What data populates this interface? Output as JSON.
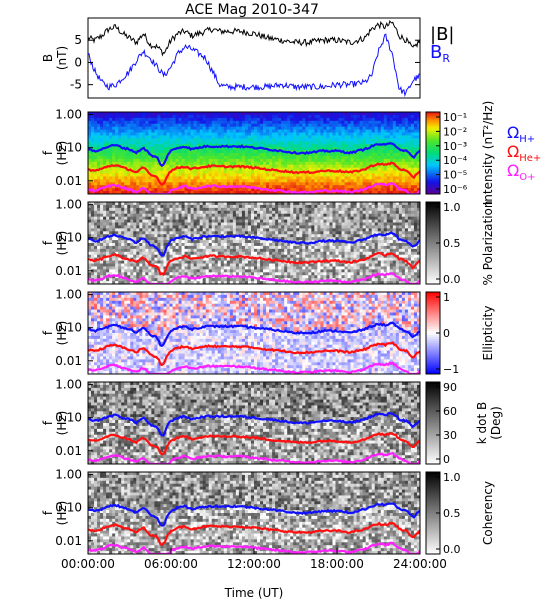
{
  "title": "ACE Mag 2010-347",
  "colors": {
    "bmag": "#000000",
    "br": "#1010ff",
    "h_plus": "#1010ff",
    "he_plus": "#ff1010",
    "o_plus": "#ff20ff"
  },
  "x_axis": {
    "label": "Time (UT)",
    "range_hours": [
      0,
      24
    ],
    "ticks": [
      "00:00:00",
      "06:00:00",
      "12:00:00",
      "18:00:00",
      "24:00:00"
    ],
    "tick_hours": [
      0,
      6,
      12,
      18,
      24
    ]
  },
  "legend": {
    "bmag": "|B|",
    "br_main": "B",
    "br_sub": "R",
    "omega": "Ω",
    "h_sub": "H+",
    "he_sub": "He+",
    "o_sub": "O+"
  },
  "freq_ticks": [
    "1.00",
    "0.10",
    "0.01"
  ],
  "chart_data": [
    {
      "type": "line",
      "ylabel_top": "B",
      "ylabel_bottom": "(nT)",
      "ylim": [
        -8,
        10
      ],
      "yticks": [
        "5",
        "0",
        "-5"
      ],
      "ytick_values": [
        5,
        0,
        -5
      ],
      "series": [
        {
          "name": "|B|",
          "x_hours": [
            0,
            0.5,
            1,
            1.5,
            2,
            2.5,
            3,
            3.5,
            4,
            4.5,
            5,
            5.5,
            6,
            6.5,
            7,
            7.5,
            8,
            8.5,
            9,
            9.5,
            10,
            11,
            12,
            13,
            14,
            15,
            16,
            17,
            18,
            19,
            20,
            20.5,
            21,
            21.5,
            22,
            22.5,
            23,
            23.5,
            24
          ],
          "values": [
            5.5,
            5.0,
            6.0,
            7.5,
            8.0,
            6.5,
            5.5,
            4.5,
            6.5,
            4.0,
            3.5,
            2.0,
            5.0,
            6.5,
            7.0,
            6.0,
            6.5,
            7.0,
            7.5,
            7.0,
            7.0,
            7.0,
            6.5,
            5.5,
            5.0,
            4.5,
            4.5,
            5.0,
            5.0,
            4.5,
            5.5,
            7.5,
            8.5,
            8.0,
            9.0,
            6.0,
            5.0,
            3.0,
            5.0
          ]
        },
        {
          "name": "B",
          "x_hours": [
            0,
            0.5,
            1,
            1.5,
            2,
            2.5,
            3,
            3.5,
            4,
            4.5,
            5,
            5.5,
            6,
            6.5,
            7,
            7.5,
            8,
            8.5,
            9,
            9.5,
            10,
            11,
            12,
            13,
            14,
            15,
            16,
            17,
            18,
            19,
            20,
            20.5,
            21,
            21.5,
            22,
            22.5,
            23,
            23.5,
            24
          ],
          "values": [
            2.0,
            -2.0,
            -4.5,
            -5.5,
            -5.0,
            -3.5,
            -2.0,
            0.5,
            2.5,
            1.0,
            -1.0,
            -3.0,
            -1.0,
            2.0,
            3.5,
            3.0,
            2.0,
            1.0,
            -2.0,
            -5.0,
            -5.5,
            -5.5,
            -5.5,
            -5.5,
            -5.0,
            -5.5,
            -5.5,
            -5.5,
            -5.0,
            -5.0,
            -4.5,
            -3.0,
            2.5,
            6.0,
            2.0,
            -6.0,
            -7.0,
            -4.0,
            -3.0
          ]
        }
      ]
    },
    {
      "type": "heatmap",
      "quantity": "Intensity",
      "ylabel_top": "f",
      "ylabel_bottom": "(Hz)",
      "colorbar_label": "Intensity (nT²/Hz)",
      "colorbar_ticks": [
        "10⁻¹",
        "10⁻²",
        "10⁻³",
        "10⁻⁴",
        "10⁻⁵",
        "10⁻⁶"
      ],
      "colorbar_tick_values": [
        0.1,
        0.01,
        0.001,
        0.0001,
        1e-05,
        1e-06
      ],
      "ylim_hz": [
        0.004,
        1.2
      ],
      "yscale": "log"
    },
    {
      "type": "heatmap",
      "quantity": "% Polarization",
      "ylabel_top": "f",
      "ylabel_bottom": "(Hz)",
      "colorbar_label": "% Polarization",
      "colorbar_ticks": [
        "1.0",
        "0.5",
        "0.0"
      ],
      "colorbar_tick_values": [
        1.0,
        0.5,
        0.0
      ],
      "ylim_hz": [
        0.004,
        1.2
      ],
      "yscale": "log"
    },
    {
      "type": "heatmap",
      "quantity": "Ellipticity",
      "ylabel_top": "f",
      "ylabel_bottom": "(Hz)",
      "colorbar_label": "Ellipticity",
      "colorbar_ticks": [
        "1",
        "0",
        "−1"
      ],
      "colorbar_tick_values": [
        1,
        0,
        -1
      ],
      "ylim_hz": [
        0.004,
        1.2
      ],
      "yscale": "log"
    },
    {
      "type": "heatmap",
      "quantity": "k dot B",
      "ylabel_top": "f",
      "ylabel_bottom": "(Hz)",
      "colorbar_label": "k dot B",
      "colorbar_label2": "(Deg)",
      "colorbar_ticks": [
        "90",
        "60",
        "30",
        "0"
      ],
      "colorbar_tick_values": [
        90,
        60,
        30,
        0
      ],
      "ylim_hz": [
        0.004,
        1.2
      ],
      "yscale": "log"
    },
    {
      "type": "heatmap",
      "quantity": "Coherency",
      "ylabel_top": "f",
      "ylabel_bottom": "(Hz)",
      "colorbar_label": "Coherency",
      "colorbar_ticks": [
        "1.0",
        "0.5",
        "0.0"
      ],
      "colorbar_tick_values": [
        1.0,
        0.5,
        0.0
      ],
      "ylim_hz": [
        0.004,
        1.2
      ],
      "yscale": "log"
    }
  ],
  "gyro_lines": {
    "x_hours": [
      0,
      0.5,
      1,
      1.5,
      2,
      2.5,
      3,
      3.5,
      4,
      4.5,
      5,
      5.25,
      5.5,
      5.75,
      6,
      6.5,
      7,
      7.5,
      8,
      8.5,
      9,
      9.5,
      10,
      11,
      12,
      13,
      14,
      15,
      16,
      17,
      18,
      19,
      20,
      20.5,
      21,
      21.5,
      22,
      22.5,
      23,
      23.5,
      24
    ],
    "H+": [
      0.09,
      0.08,
      0.09,
      0.11,
      0.12,
      0.1,
      0.09,
      0.07,
      0.1,
      0.06,
      0.05,
      0.03,
      0.03,
      0.06,
      0.08,
      0.1,
      0.11,
      0.09,
      0.1,
      0.11,
      0.11,
      0.11,
      0.11,
      0.11,
      0.1,
      0.09,
      0.08,
      0.07,
      0.07,
      0.08,
      0.08,
      0.07,
      0.09,
      0.11,
      0.13,
      0.12,
      0.14,
      0.09,
      0.08,
      0.05,
      0.08
    ],
    "He+": [
      0.022,
      0.02,
      0.023,
      0.028,
      0.03,
      0.025,
      0.022,
      0.018,
      0.025,
      0.015,
      0.013,
      0.008,
      0.008,
      0.015,
      0.02,
      0.025,
      0.027,
      0.023,
      0.025,
      0.027,
      0.028,
      0.027,
      0.027,
      0.027,
      0.025,
      0.022,
      0.02,
      0.018,
      0.018,
      0.02,
      0.02,
      0.018,
      0.022,
      0.028,
      0.033,
      0.03,
      0.035,
      0.023,
      0.02,
      0.012,
      0.02
    ],
    "O+": [
      0.0055,
      0.005,
      0.0057,
      0.007,
      0.0075,
      0.0062,
      0.0055,
      0.0045,
      0.0062,
      0.0038,
      0.0033,
      0.002,
      0.002,
      0.0038,
      0.005,
      0.0062,
      0.0068,
      0.0057,
      0.0062,
      0.0068,
      0.007,
      0.0068,
      0.0068,
      0.0068,
      0.0062,
      0.0055,
      0.005,
      0.0045,
      0.0045,
      0.005,
      0.005,
      0.0045,
      0.0055,
      0.007,
      0.0082,
      0.0075,
      0.0087,
      0.0057,
      0.005,
      0.003,
      0.005
    ]
  }
}
